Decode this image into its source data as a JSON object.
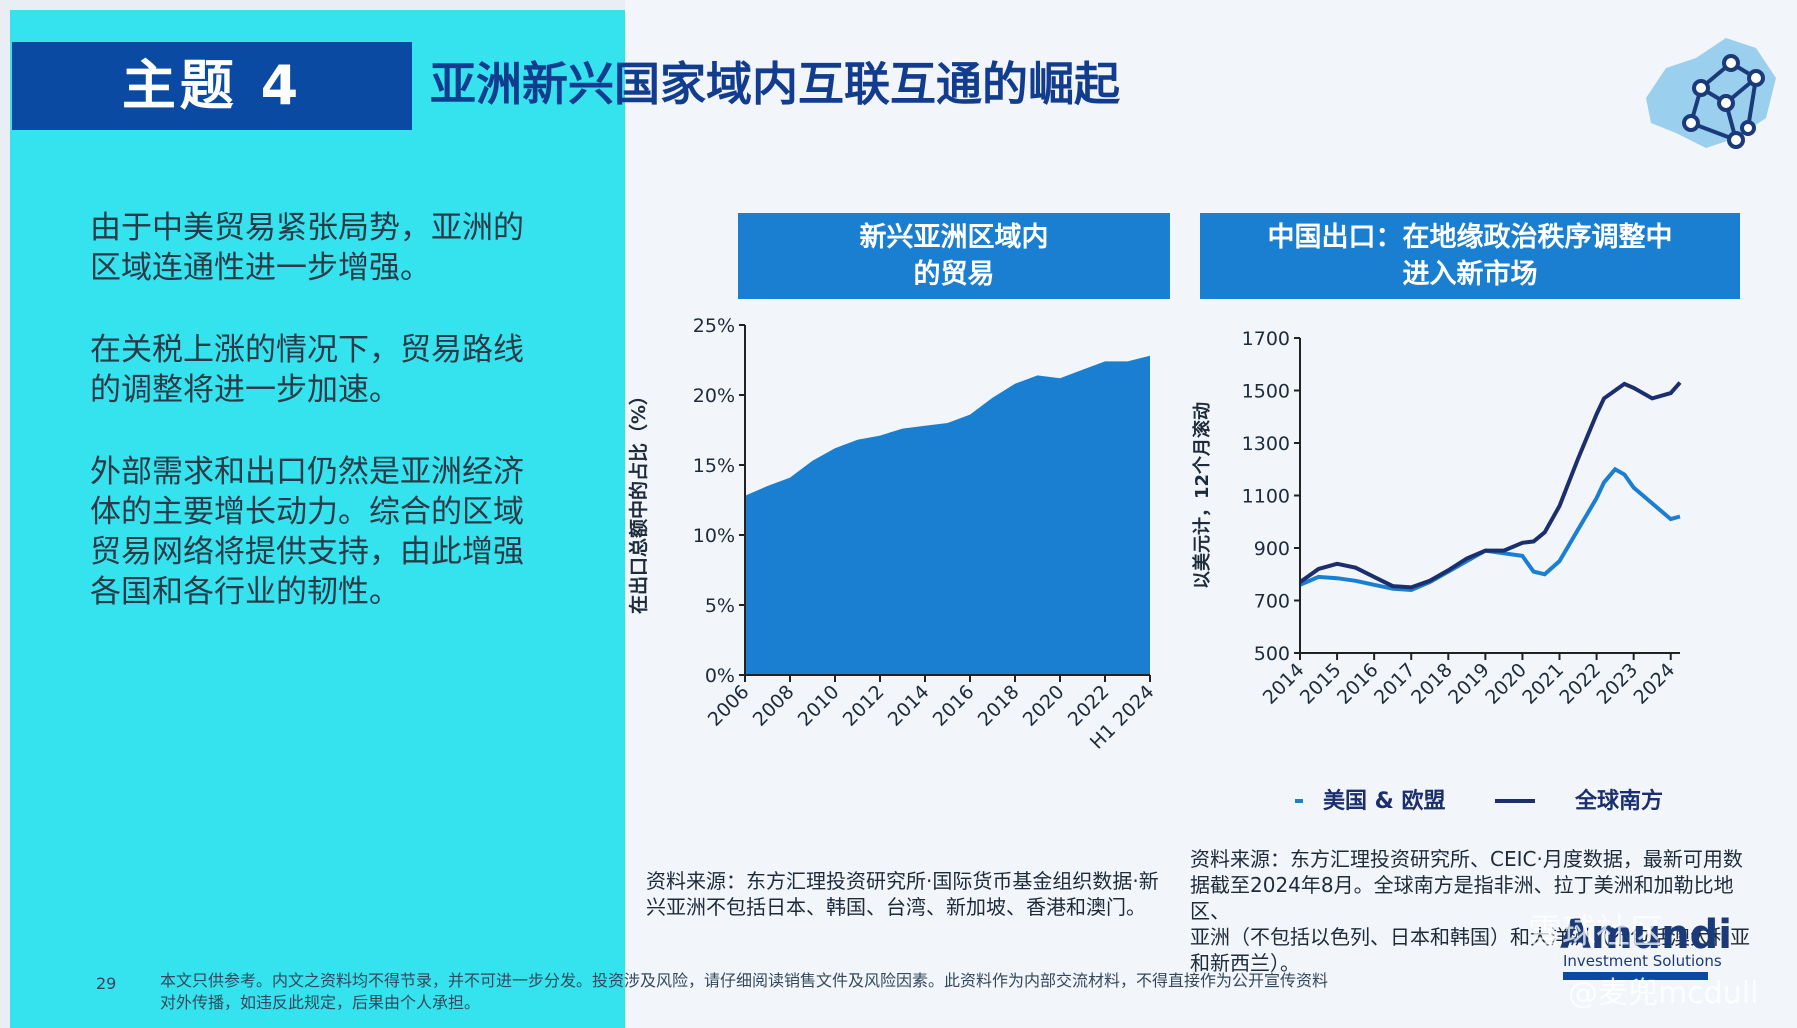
{
  "slide": {
    "topic": "主题 4",
    "title": "亚洲新兴国家域内互联互通的崛起",
    "paragraphs": [
      [
        "由于中美贸易紧张局势，亚洲的",
        "区域连通性进一步增强。"
      ],
      [
        "在关税上涨的情况下，贸易路线",
        "的调整将进一步加速。"
      ],
      [
        "外部需求和出口仍然是亚洲经济",
        "体的主要增长动力。综合的区域",
        "贸易网络将提供支持，由此增强",
        "各国和各行业的韧性。"
      ]
    ],
    "page_number": "29",
    "footer": [
      "本文只供参考。内文之资料均不得节录，并不可进一步分发。投资涉及风险，请仔细阅读销售文件及风险因素。此资料作为内部交流材料，不得直接作为公开宣传资料",
      "对外传播，如违反此规定，后果由个人承担。"
    ],
    "brand": "Amundi",
    "brand_sub": "Investment Solutions",
    "watermark_top": "雪球社区",
    "watermark_bottom": "@麦兜mcdull"
  },
  "charts": {
    "left": {
      "header": [
        "新兴亚洲区域内",
        "的贸易"
      ],
      "source": [
        "资料来源：东方汇理投资研究所·国际货币基金组织数据·新",
        "兴亚洲不包括日本、韩国、台湾、新加坡、香港和澳门。"
      ]
    },
    "right": {
      "header": [
        "中国出口：在地缘政治秩序调整中",
        "进入新市场"
      ],
      "source": [
        "资料来源：东方汇理投资研究所、CEIC·月度数据，最新可用数",
        "据截至2024年8月。全球南方是指非洲、拉丁美洲和加勒比地区、",
        "亚洲（不包括以色列、日本和韩国）和大洋洲（不包括澳大利亚",
        "和新西兰）。"
      ]
    }
  },
  "colors": {
    "left_panel": "#35e3ee",
    "header_blue": "#1a7fd0",
    "area_fill": "#1a7fd0",
    "global_south": "#1b2f6e",
    "us_eu": "#1a7fd0"
  },
  "chart_data": [
    {
      "type": "area",
      "title": "新兴亚洲区域内的贸易",
      "ylabel": "在出口总额中的占比（%）",
      "ylim": [
        0,
        25
      ],
      "yticks": [
        "0%",
        "5%",
        "10%",
        "15%",
        "20%",
        "25%"
      ],
      "xtick_labels": [
        "2006",
        "2008",
        "2010",
        "2012",
        "2014",
        "2016",
        "2018",
        "2020",
        "2022",
        "H1 2024"
      ],
      "x": [
        2006,
        2007,
        2008,
        2009,
        2010,
        2011,
        2012,
        2013,
        2014,
        2015,
        2016,
        2017,
        2018,
        2019,
        2020,
        2021,
        2022,
        2023,
        2024
      ],
      "values": [
        12.8,
        13.5,
        14.1,
        15.3,
        16.2,
        16.8,
        17.1,
        17.6,
        17.8,
        18.0,
        18.6,
        19.8,
        20.8,
        21.4,
        21.2,
        21.8,
        22.4,
        22.4,
        22.8
      ],
      "grid": false
    },
    {
      "type": "line",
      "title": "中国出口：在地缘政治秩序调整中进入新市场",
      "ylabel": "以美元计，12个月滚动",
      "ylim": [
        500,
        1700
      ],
      "yticks": [
        "500",
        "700",
        "900",
        "1100",
        "1300",
        "1500",
        "1700"
      ],
      "xtick_labels": [
        "2014",
        "2015",
        "2016",
        "2017",
        "2018",
        "2019",
        "2020",
        "2021",
        "2022",
        "2023",
        "2024"
      ],
      "x": [
        2014.0,
        2014.5,
        2015.0,
        2015.5,
        2016.0,
        2016.5,
        2017.0,
        2017.5,
        2018.0,
        2018.5,
        2019.0,
        2019.5,
        2020.0,
        2020.3,
        2020.6,
        2021.0,
        2021.5,
        2022.0,
        2022.2,
        2022.5,
        2022.75,
        2023.0,
        2023.5,
        2024.0,
        2024.25
      ],
      "series": [
        {
          "name": "美国 & 欧盟",
          "values": [
            760,
            790,
            785,
            775,
            760,
            745,
            740,
            770,
            810,
            850,
            890,
            880,
            870,
            810,
            800,
            850,
            970,
            1090,
            1150,
            1200,
            1180,
            1130,
            1070,
            1010,
            1020
          ]
        },
        {
          "name": "全球南方",
          "values": [
            770,
            820,
            840,
            825,
            790,
            755,
            750,
            775,
            815,
            860,
            890,
            890,
            920,
            925,
            960,
            1060,
            1240,
            1410,
            1470,
            1500,
            1525,
            1510,
            1470,
            1490,
            1530
          ]
        }
      ],
      "legend": "bottom",
      "grid": false
    }
  ]
}
